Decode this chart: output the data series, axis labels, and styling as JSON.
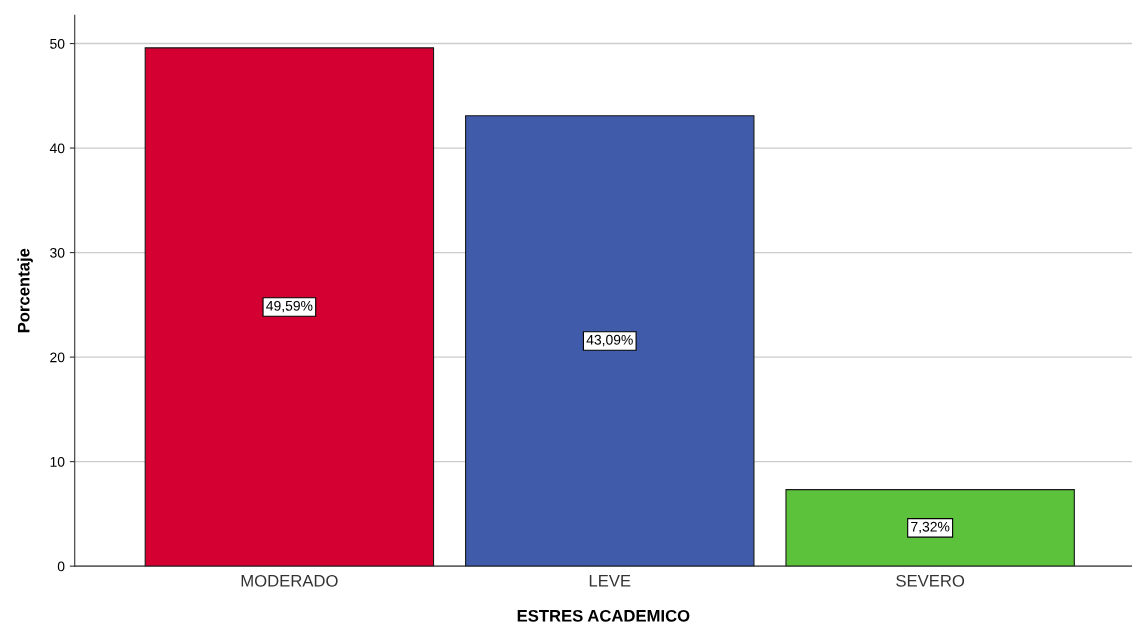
{
  "chart_data": {
    "type": "bar",
    "xlabel": "ESTRES ACADEMICO",
    "ylabel": "Porcentaje",
    "categories": [
      "MODERADO",
      "LEVE",
      "SEVERO"
    ],
    "values": [
      49.59,
      43.09,
      7.32
    ],
    "colors": [
      "#d50032",
      "#3f5ba9",
      "#5cc13b"
    ],
    "value_labels": [
      "49,59%",
      "43,09%",
      "7,32%"
    ],
    "ylim": [
      0,
      52.7
    ],
    "yticks": [
      0,
      10,
      20,
      30,
      40,
      50
    ],
    "grid": "y"
  }
}
